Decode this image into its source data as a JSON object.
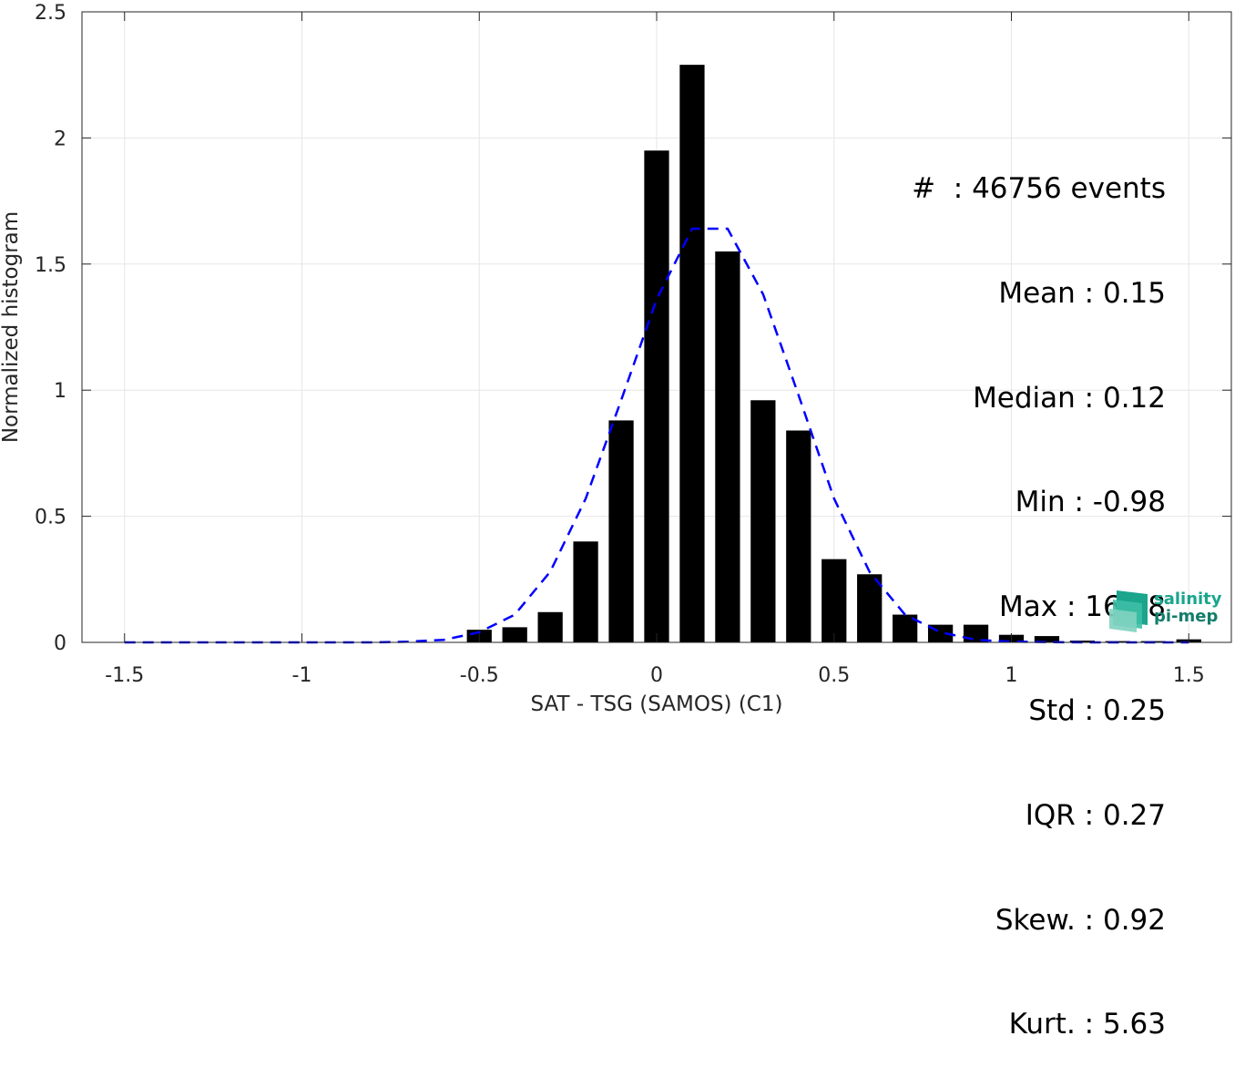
{
  "chart_data": {
    "type": "bar",
    "xlabel": "SAT - TSG (SAMOS) (C1)",
    "ylabel": "Normalized histogram",
    "xlim": [
      -1.62,
      1.62
    ],
    "ylim": [
      0,
      2.5
    ],
    "xticks": [
      -1.5,
      -1,
      -0.5,
      0,
      0.5,
      1,
      1.5
    ],
    "xtick_labels": [
      "-1.5",
      "-1",
      "-0.5",
      "0",
      "0.5",
      "1",
      "1.5"
    ],
    "yticks": [
      0,
      0.5,
      1,
      1.5,
      2,
      2.5
    ],
    "ytick_labels": [
      "0",
      "0.5",
      "1",
      "1.5",
      "2",
      "2.5"
    ],
    "grid": true,
    "bar_color": "#000000",
    "fit_color": "#0000ff",
    "bars": {
      "x": [
        -0.5,
        -0.4,
        -0.3,
        -0.2,
        -0.1,
        0.0,
        0.1,
        0.2,
        0.3,
        0.4,
        0.5,
        0.6,
        0.7,
        0.8,
        0.9,
        1.0,
        1.1,
        1.2,
        1.3,
        1.4,
        1.5
      ],
      "values": [
        0.05,
        0.06,
        0.12,
        0.4,
        0.88,
        1.95,
        2.29,
        1.55,
        0.96,
        0.84,
        0.33,
        0.27,
        0.11,
        0.07,
        0.07,
        0.03,
        0.025,
        0.007,
        0.005,
        0.005,
        0.012
      ]
    },
    "fit": {
      "style": "dashed",
      "x": [
        -1.5,
        -1.4,
        -1.3,
        -1.2,
        -1.1,
        -1.0,
        -0.9,
        -0.8,
        -0.7,
        -0.6,
        -0.5,
        -0.4,
        -0.3,
        -0.2,
        -0.1,
        0.0,
        0.1,
        0.2,
        0.3,
        0.4,
        0.5,
        0.6,
        0.7,
        0.8,
        0.9,
        1.0,
        1.1,
        1.2,
        1.3,
        1.4,
        1.5
      ],
      "y": [
        0,
        0,
        0,
        0,
        0,
        0,
        0,
        0,
        0.003,
        0.01,
        0.04,
        0.11,
        0.28,
        0.57,
        0.96,
        1.36,
        1.64,
        1.64,
        1.38,
        0.98,
        0.57,
        0.28,
        0.11,
        0.04,
        0.01,
        0.003,
        0.001,
        0,
        0,
        0,
        0
      ]
    }
  },
  "stats": [
    "#  : 46756 events",
    "Mean : 0.15",
    "Median : 0.12",
    "Min : -0.98",
    "Max : 16.88",
    "Std : 0.25",
    "IQR : 0.27",
    "Skew. : 0.92",
    "Kurt. : 5.63"
  ],
  "logo": {
    "name": "salinity-pi-mep-logo-icon",
    "line1": "salinity",
    "line2": "pi-mep",
    "colors": [
      "#1aa58c",
      "#137d6b",
      "#7fd1c0"
    ]
  }
}
